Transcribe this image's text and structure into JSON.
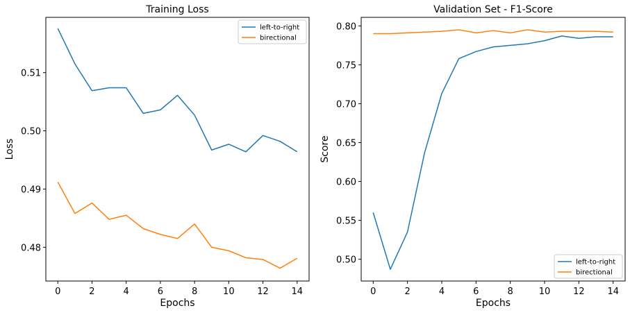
{
  "chart_data": [
    {
      "type": "line",
      "title": "Training Loss",
      "xlabel": "Epochs",
      "ylabel": "Loss",
      "xlim": [
        -0.7,
        14.7
      ],
      "ylim": [
        0.4742,
        0.5195
      ],
      "xticks": [
        0,
        2,
        4,
        6,
        8,
        10,
        12,
        14
      ],
      "yticks": [
        0.48,
        0.49,
        0.5,
        0.51
      ],
      "ytick_labels": [
        "0.48",
        "0.49",
        "0.50",
        "0.51"
      ],
      "legend_position": "upper-right",
      "x": [
        0,
        1,
        2,
        3,
        4,
        5,
        6,
        7,
        8,
        9,
        10,
        11,
        12,
        13,
        14
      ],
      "series": [
        {
          "name": "left-to-right",
          "color": "#1f77b4",
          "values": [
            0.5176,
            0.5115,
            0.5069,
            0.5074,
            0.5074,
            0.503,
            0.5036,
            0.5061,
            0.5027,
            0.4967,
            0.4977,
            0.4964,
            0.4992,
            0.4982,
            0.4964
          ]
        },
        {
          "name": "birectional",
          "color": "#ff7f0e",
          "values": [
            0.4912,
            0.4858,
            0.4876,
            0.4848,
            0.4855,
            0.4832,
            0.4822,
            0.4815,
            0.484,
            0.48,
            0.4794,
            0.4782,
            0.4779,
            0.4764,
            0.4781
          ]
        }
      ]
    },
    {
      "type": "line",
      "title": "Validation Set - F1-Score",
      "xlabel": "Epochs",
      "ylabel": "Score",
      "xlim": [
        -0.7,
        14.7
      ],
      "ylim": [
        0.472,
        0.811
      ],
      "xticks": [
        0,
        2,
        4,
        6,
        8,
        10,
        12,
        14
      ],
      "yticks": [
        0.5,
        0.55,
        0.6,
        0.65,
        0.7,
        0.75,
        0.8
      ],
      "ytick_labels": [
        "0.50",
        "0.55",
        "0.60",
        "0.65",
        "0.70",
        "0.75",
        "0.80"
      ],
      "legend_position": "lower-right",
      "x": [
        0,
        1,
        2,
        3,
        4,
        5,
        6,
        7,
        8,
        9,
        10,
        11,
        12,
        13,
        14
      ],
      "series": [
        {
          "name": "left-to-right",
          "color": "#1f77b4",
          "values": [
            0.56,
            0.487,
            0.535,
            0.637,
            0.713,
            0.758,
            0.767,
            0.773,
            0.775,
            0.777,
            0.781,
            0.787,
            0.784,
            0.786,
            0.786
          ]
        },
        {
          "name": "birectional",
          "color": "#ff7f0e",
          "values": [
            0.79,
            0.79,
            0.791,
            0.792,
            0.793,
            0.795,
            0.791,
            0.794,
            0.791,
            0.795,
            0.792,
            0.793,
            0.793,
            0.793,
            0.792
          ]
        }
      ]
    }
  ]
}
